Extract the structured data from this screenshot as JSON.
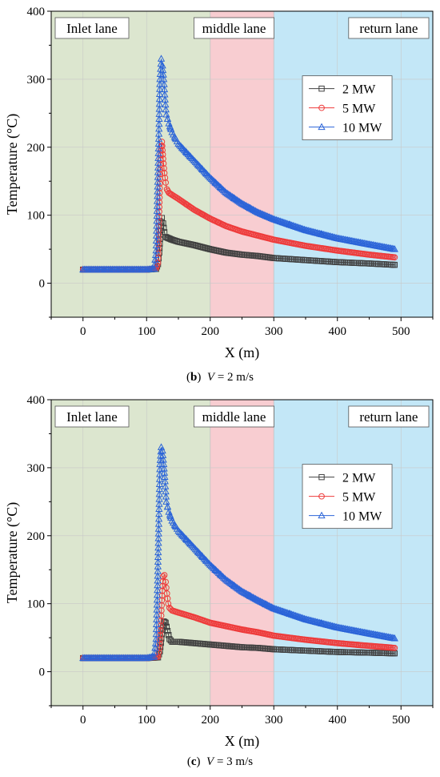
{
  "charts": [
    {
      "caption": {
        "letter": "b",
        "variable": "V",
        "value": "= 2 m/s"
      },
      "chart_data": {
        "type": "scatter",
        "xlabel": "X (m)",
        "ylabel": "Temperature (°C)",
        "xlim": [
          -50,
          550
        ],
        "ylim": [
          -50,
          400
        ],
        "xticks": [
          "0",
          "100",
          "200",
          "300",
          "400",
          "500"
        ],
        "yticks": [
          "0",
          "100",
          "200",
          "300",
          "400"
        ],
        "legend_position": "upper-right",
        "regions": [
          {
            "label": "Inlet lane",
            "x_range": [
              -50,
              200
            ],
            "color": "#dce6cf"
          },
          {
            "label": "middle lane",
            "x_range": [
              200,
              300
            ],
            "color": "#f8cdd1"
          },
          {
            "label": "return lane",
            "x_range": [
              300,
              550
            ],
            "color": "#c3e7f7"
          }
        ],
        "series": [
          {
            "name": "2 MW",
            "color": "#404040",
            "marker": "square",
            "x": [
              0,
              50,
              100,
              115,
              118,
              120,
              122,
              124,
              126,
              128,
              130,
              135,
              140,
              150,
              175,
              200,
              225,
              250,
              275,
              300,
              350,
              400,
              450,
              490
            ],
            "y": [
              20,
              20,
              20,
              21,
              28,
              45,
              78,
              96,
              88,
              75,
              68,
              66,
              64,
              61,
              56,
              50,
              45,
              42,
              40,
              37,
              34,
              31,
              29,
              27
            ]
          },
          {
            "name": "5 MW",
            "color": "#ee3b3b",
            "marker": "circle",
            "x": [
              0,
              50,
              100,
              115,
              118,
              120,
              122,
              124,
              126,
              128,
              130,
              132,
              135,
              140,
              150,
              175,
              200,
              225,
              250,
              275,
              300,
              350,
              400,
              450,
              490
            ],
            "y": [
              20,
              20,
              20,
              22,
              30,
              112,
              195,
              208,
              183,
              162,
              148,
              138,
              133,
              130,
              124,
              108,
              95,
              84,
              76,
              70,
              64,
              55,
              48,
              42,
              38
            ]
          },
          {
            "name": "10 MW",
            "color": "#2b64d8",
            "marker": "triangle",
            "x": [
              0,
              50,
              100,
              112,
              115,
              117,
              119,
              121,
              123,
              125,
              127,
              129,
              131,
              135,
              140,
              150,
              175,
              200,
              225,
              250,
              275,
              300,
              350,
              400,
              450,
              490
            ],
            "y": [
              20,
              20,
              20,
              21,
              48,
              128,
              205,
              300,
              330,
              320,
              300,
              270,
              248,
              235,
              222,
              205,
              180,
              155,
              133,
              117,
              104,
              94,
              78,
              66,
              57,
              50
            ]
          }
        ]
      }
    },
    {
      "caption": {
        "letter": "c",
        "variable": "V",
        "value": "= 3 m/s"
      },
      "chart_data": {
        "type": "scatter",
        "xlabel": "X (m)",
        "ylabel": "Temperature (°C)",
        "xlim": [
          -50,
          550
        ],
        "ylim": [
          -50,
          400
        ],
        "xticks": [
          "0",
          "100",
          "200",
          "300",
          "400",
          "500"
        ],
        "yticks": [
          "0",
          "100",
          "200",
          "300",
          "400"
        ],
        "legend_position": "upper-right",
        "regions": [
          {
            "label": "Inlet lane",
            "x_range": [
              -50,
              200
            ],
            "color": "#dce6cf"
          },
          {
            "label": "middle lane",
            "x_range": [
              200,
              300
            ],
            "color": "#f8cdd1"
          },
          {
            "label": "return lane",
            "x_range": [
              300,
              550
            ],
            "color": "#c3e7f7"
          }
        ],
        "series": [
          {
            "name": "2 MW",
            "color": "#404040",
            "marker": "square",
            "x": [
              0,
              50,
              100,
              118,
              121,
              124,
              127,
              130,
              133,
              136,
              140,
              150,
              175,
              200,
              225,
              250,
              275,
              300,
              350,
              400,
              450,
              490
            ],
            "y": [
              20,
              20,
              20,
              21,
              30,
              55,
              74,
              72,
              60,
              48,
              44,
              44,
              42,
              40,
              38,
              36,
              35,
              33,
              31,
              29,
              28,
              27
            ]
          },
          {
            "name": "5 MW",
            "color": "#ee3b3b",
            "marker": "circle",
            "x": [
              0,
              50,
              100,
              118,
              120,
              122,
              124,
              126,
              128,
              130,
              132,
              134,
              136,
              140,
              150,
              175,
              200,
              210,
              225,
              250,
              275,
              300,
              350,
              400,
              450,
              490
            ],
            "y": [
              20,
              20,
              20,
              22,
              35,
              60,
              105,
              140,
              142,
              132,
              115,
              100,
              94,
              90,
              87,
              80,
              72,
              70,
              67,
              62,
              58,
              53,
              47,
              42,
              38,
              35
            ]
          },
          {
            "name": "10 MW",
            "color": "#2b64d8",
            "marker": "triangle",
            "x": [
              0,
              50,
              100,
              112,
              115,
              117,
              119,
              121,
              123,
              125,
              127,
              129,
              131,
              135,
              140,
              150,
              175,
              200,
              225,
              250,
              275,
              300,
              350,
              400,
              450,
              490
            ],
            "y": [
              20,
              20,
              20,
              22,
              48,
              120,
              210,
              305,
              330,
              325,
              305,
              280,
              250,
              235,
              222,
              207,
              182,
              157,
              135,
              118,
              105,
              93,
              77,
              65,
              56,
              49
            ]
          }
        ]
      }
    }
  ]
}
